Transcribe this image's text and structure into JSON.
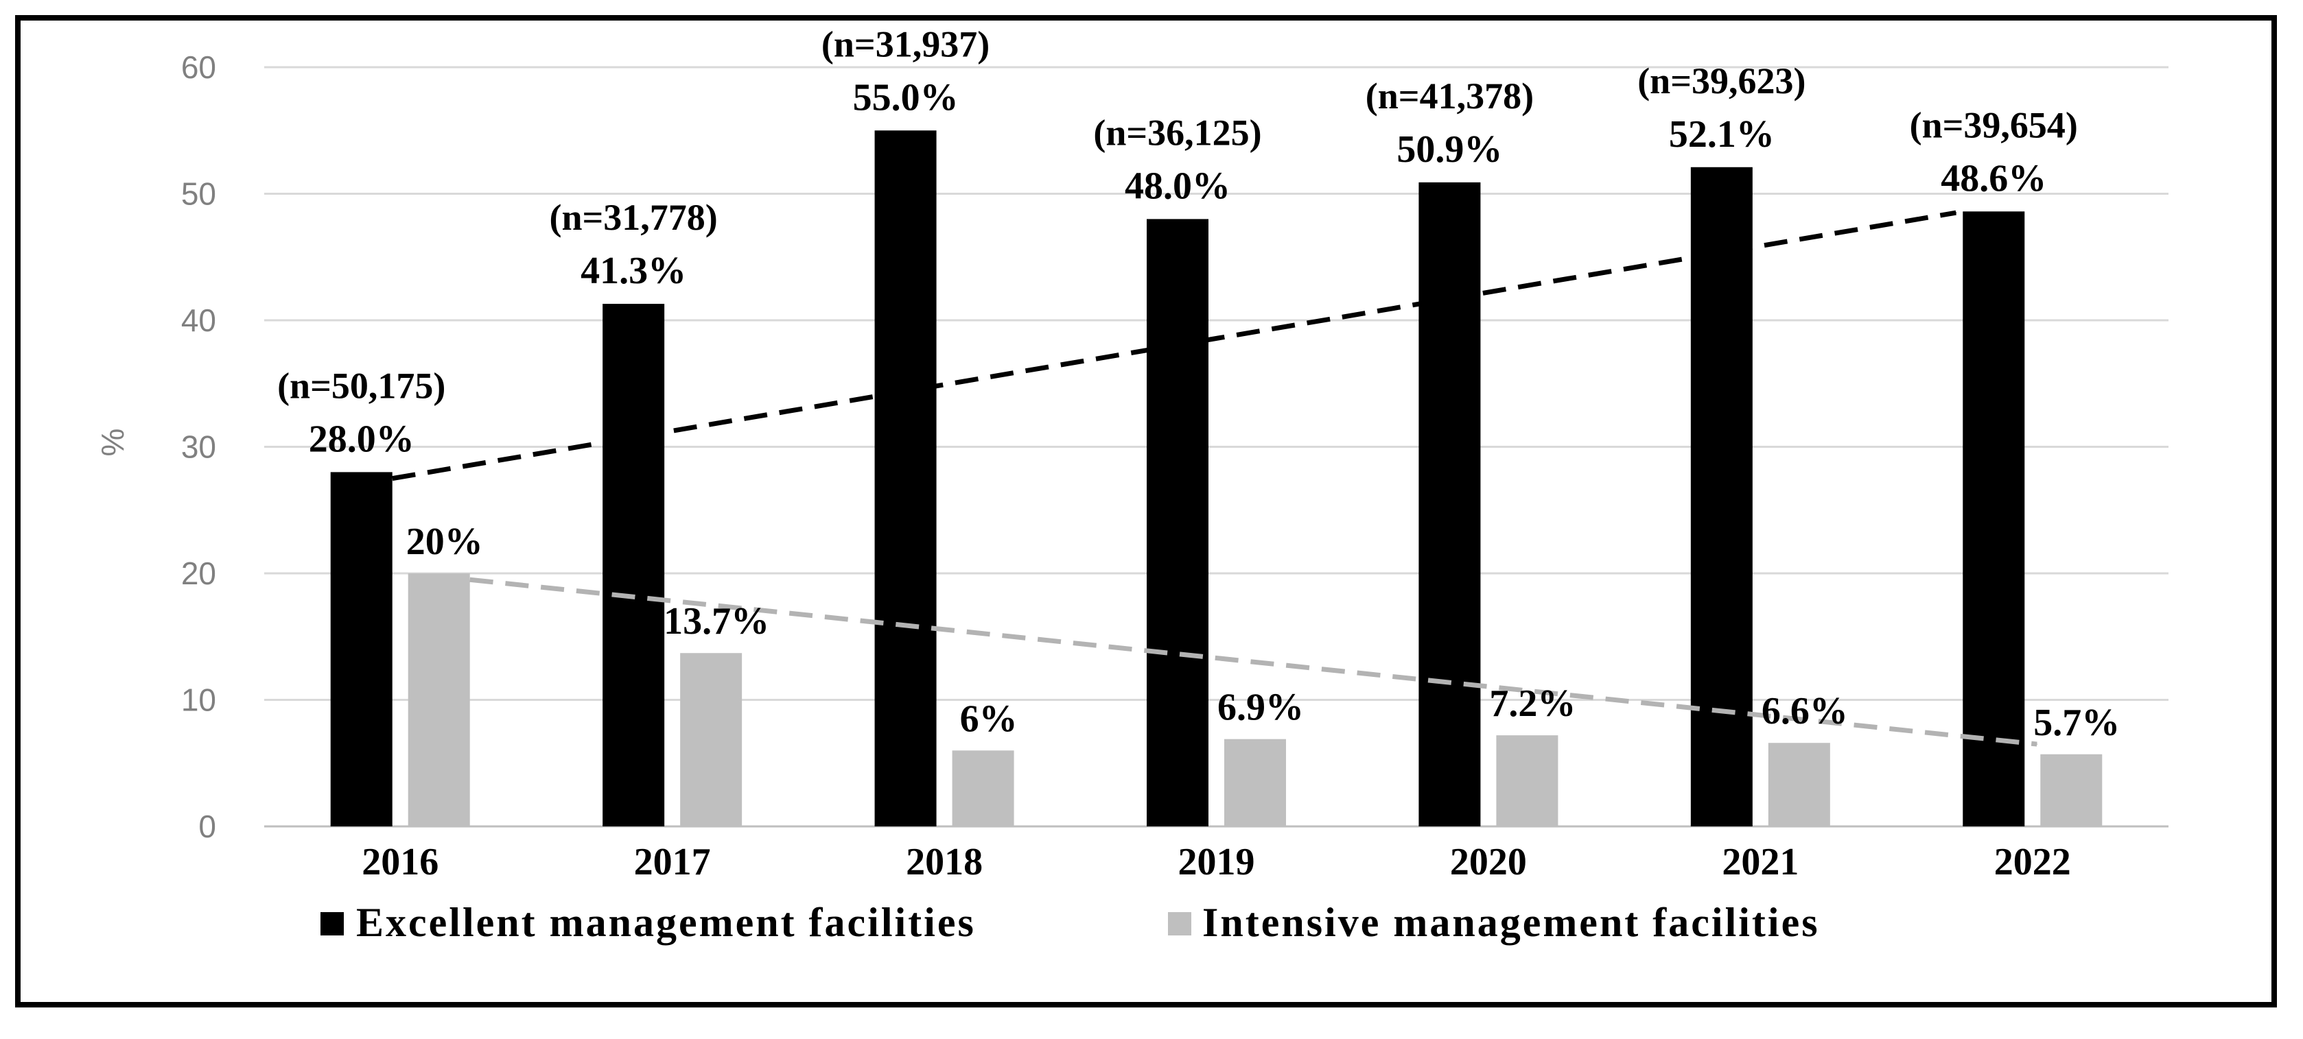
{
  "chart_data": {
    "type": "bar",
    "title": "",
    "xlabel": "",
    "ylabel": "%",
    "ylim": [
      0,
      60
    ],
    "yticks": [
      0,
      10,
      20,
      30,
      40,
      50,
      60
    ],
    "grid": true,
    "legend_position": "bottom",
    "categories": [
      "2016",
      "2017",
      "2018",
      "2019",
      "2020",
      "2021",
      "2022"
    ],
    "series": [
      {
        "name": "Excellent management facilities",
        "color": "#000000",
        "values": [
          28.0,
          41.3,
          55.0,
          48.0,
          50.9,
          52.1,
          48.6
        ],
        "labels": [
          "28.0%",
          "41.3%",
          "55.0%",
          "48.0%",
          "50.9%",
          "52.1%",
          "48.6%"
        ],
        "n_labels": [
          "(n=50,175)",
          "(n=31,778)",
          "(n=31,937)",
          "(n=36,125)",
          "(n=41,378)",
          "(n=39,623)",
          "(n=39,654)"
        ]
      },
      {
        "name": "Intensive management facilities",
        "color": "#bfbfbf",
        "values": [
          20,
          13.7,
          6,
          6.9,
          7.2,
          6.6,
          5.7
        ],
        "labels": [
          "20%",
          "13.7%",
          "6%",
          "6.9%",
          "7.2%",
          "6.6%",
          "5.7%"
        ]
      }
    ],
    "trend_arrows": [
      {
        "series": "Excellent management facilities",
        "from": {
          "x": "2016",
          "y": 27.5
        },
        "to": {
          "x": "2022",
          "y": 48.5
        },
        "color": "#000000",
        "style": "dashed"
      },
      {
        "series": "Intensive management facilities",
        "from": {
          "x": "2016",
          "y": 19.5
        },
        "to": {
          "x": "2022",
          "y": 6.5
        },
        "color": "#b3b3b3",
        "style": "dashed"
      }
    ]
  }
}
